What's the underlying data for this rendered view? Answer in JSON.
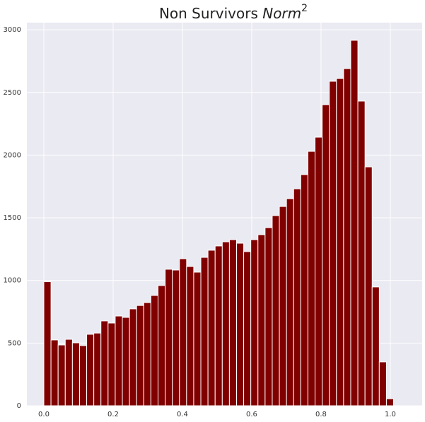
{
  "chart_data": {
    "type": "histogram",
    "title": {
      "text": "Non Survivors",
      "math": "Norm",
      "superscript": "2"
    },
    "bins": [
      0,
      0.0206,
      0.0412,
      0.0618,
      0.0824,
      0.103,
      0.1236,
      0.1442,
      0.1648,
      0.1854,
      0.206,
      0.2266,
      0.2472,
      0.2678,
      0.2884,
      0.309,
      0.3296,
      0.3502,
      0.3708,
      0.3914,
      0.412,
      0.4326,
      0.4532,
      0.4738,
      0.4944,
      0.515,
      0.5356,
      0.5562,
      0.5768,
      0.5974,
      0.618,
      0.6386,
      0.6592,
      0.6798,
      0.7004,
      0.721,
      0.7416,
      0.7622,
      0.7828,
      0.8034,
      0.824,
      0.8446,
      0.8652,
      0.8858,
      0.9064,
      0.927,
      0.9476,
      0.9682,
      0.9888,
      1.0094
    ],
    "values": [
      990,
      525,
      485,
      530,
      502,
      480,
      570,
      580,
      677,
      660,
      716,
      705,
      773,
      800,
      823,
      880,
      959,
      1089,
      1083,
      1173,
      1111,
      1066,
      1184,
      1241,
      1275,
      1308,
      1325,
      1297,
      1230,
      1325,
      1365,
      1421,
      1517,
      1590,
      1652,
      1731,
      1844,
      2030,
      2143,
      2402,
      2589,
      2611,
      2690,
      2916,
      2431,
      1906,
      948,
      350,
      56
    ],
    "color": "#800000",
    "xlim": [
      -0.049,
      1.092
    ],
    "ylim": [
      0,
      3057
    ],
    "xticks": [
      {
        "value": 0,
        "label": "0.0"
      },
      0.2,
      0.4,
      0.6,
      0.8,
      {
        "value": 1,
        "label": "1.0"
      }
    ],
    "yticks": [
      0,
      500,
      1000,
      1500,
      2000,
      2500,
      3000
    ],
    "grid": true
  }
}
